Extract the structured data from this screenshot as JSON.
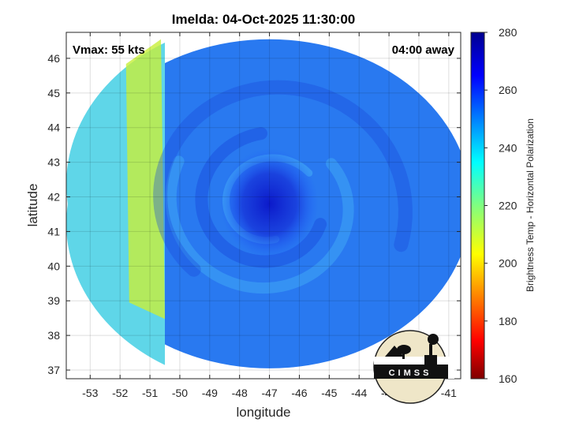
{
  "chart_data": {
    "type": "heatmap",
    "title": "Imelda: 04-Oct-2025 11:30:00",
    "xlabel": "longitude",
    "ylabel": "latitude",
    "xlim": [
      -53.8,
      -40.6
    ],
    "ylim": [
      36.75,
      46.75
    ],
    "x_ticks": [
      -53,
      -52,
      -51,
      -50,
      -49,
      -48,
      -47,
      -46,
      -45,
      -44,
      -43,
      -42,
      -41
    ],
    "x_tick_labels": [
      "-53",
      "-52",
      "-51",
      "-50",
      "-49",
      "-48",
      "-47",
      "-46",
      "-45",
      "-44",
      "-43",
      "-42",
      "-41"
    ],
    "y_ticks": [
      37,
      38,
      39,
      40,
      41,
      42,
      43,
      44,
      45,
      46
    ],
    "y_tick_labels": [
      "37",
      "38",
      "39",
      "40",
      "41",
      "42",
      "43",
      "44",
      "45",
      "46"
    ],
    "grid": true,
    "annotations": {
      "vmax": "Vmax: 55 kts",
      "away": "04:00 away"
    },
    "colorbar": {
      "label": "Brightness Temp - Horizontal Polarization",
      "min": 160,
      "max": 280,
      "ticks": [
        160,
        180,
        200,
        220,
        240,
        260,
        280
      ],
      "tick_labels": [
        "160",
        "180",
        "200",
        "220",
        "240",
        "260",
        "280"
      ],
      "colormap": [
        "#7f0000",
        "#ff0000",
        "#ff8000",
        "#ffff00",
        "#80ff80",
        "#00ffff",
        "#0080ff",
        "#0000ff",
        "#00008f"
      ]
    },
    "storm_center": {
      "lon": -47.0,
      "lat": 41.8
    },
    "swath": {
      "center_lon": -47.0,
      "center_lat": 41.8,
      "radius_lon": 6.75,
      "radius_lat": 4.75
    },
    "regions": [
      {
        "name": "warm western edge",
        "lon_range": [
          -53.8,
          -50.5
        ],
        "value_range": [
          210,
          225
        ]
      },
      {
        "name": "swath interior",
        "lon_range": [
          -50.5,
          -40.6
        ],
        "value_range": [
          240,
          255
        ]
      },
      {
        "name": "storm core",
        "center": [
          -47.0,
          41.8
        ],
        "value": 262
      }
    ]
  },
  "logo": {
    "text": "CIMSS"
  }
}
